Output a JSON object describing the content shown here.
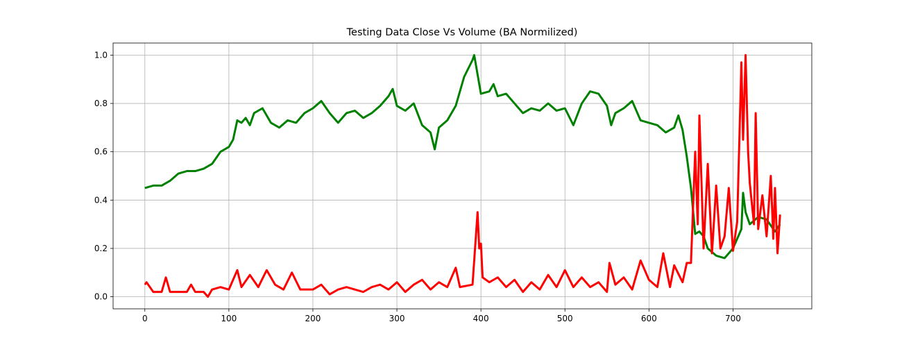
{
  "chart_data": {
    "type": "line",
    "title": "Testing Data Close Vs Volume (BA Normilized)",
    "grid": true,
    "xlim": [
      -37.8,
      793.8
    ],
    "ylim": [
      -0.05,
      1.05
    ],
    "xticks": [
      0,
      100,
      200,
      300,
      400,
      500,
      600,
      700
    ],
    "yticks": [
      {
        "value": 0,
        "label": "0.0"
      },
      0.2,
      0.4,
      0.6,
      0.8,
      {
        "value": 1,
        "label": "1.0"
      }
    ],
    "series": [
      {
        "color": "#008000",
        "x": [
          0,
          10,
          20,
          30,
          40,
          50,
          60,
          70,
          80,
          90,
          100,
          105,
          110,
          115,
          120,
          125,
          130,
          140,
          150,
          160,
          170,
          180,
          190,
          200,
          210,
          220,
          230,
          240,
          250,
          260,
          270,
          280,
          290,
          295,
          300,
          310,
          320,
          330,
          340,
          345,
          350,
          360,
          370,
          380,
          390,
          392,
          400,
          410,
          415,
          420,
          430,
          440,
          450,
          460,
          470,
          480,
          490,
          500,
          510,
          520,
          530,
          540,
          550,
          555,
          560,
          570,
          580,
          590,
          600,
          610,
          620,
          630,
          635,
          640,
          645,
          650,
          655,
          660,
          665,
          670,
          680,
          690,
          700,
          710,
          712,
          715,
          720,
          730,
          740,
          750,
          756
        ],
        "values": [
          0.45,
          0.46,
          0.46,
          0.48,
          0.51,
          0.52,
          0.52,
          0.53,
          0.55,
          0.6,
          0.62,
          0.65,
          0.73,
          0.72,
          0.74,
          0.71,
          0.76,
          0.78,
          0.72,
          0.7,
          0.73,
          0.72,
          0.76,
          0.78,
          0.81,
          0.76,
          0.72,
          0.76,
          0.77,
          0.74,
          0.76,
          0.79,
          0.83,
          0.86,
          0.79,
          0.77,
          0.8,
          0.71,
          0.68,
          0.61,
          0.7,
          0.73,
          0.79,
          0.91,
          0.98,
          1.0,
          0.84,
          0.85,
          0.88,
          0.83,
          0.84,
          0.8,
          0.76,
          0.78,
          0.77,
          0.8,
          0.77,
          0.78,
          0.71,
          0.8,
          0.85,
          0.84,
          0.79,
          0.71,
          0.76,
          0.78,
          0.81,
          0.73,
          0.72,
          0.71,
          0.68,
          0.7,
          0.75,
          0.69,
          0.58,
          0.45,
          0.26,
          0.27,
          0.25,
          0.2,
          0.17,
          0.16,
          0.2,
          0.28,
          0.43,
          0.35,
          0.3,
          0.33,
          0.32,
          0.27,
          0.3
        ]
      },
      {
        "color": "#ff0000",
        "x": [
          0,
          2,
          10,
          20,
          25,
          30,
          40,
          50,
          55,
          60,
          70,
          75,
          80,
          90,
          100,
          110,
          115,
          125,
          135,
          145,
          155,
          165,
          175,
          185,
          200,
          210,
          220,
          230,
          240,
          250,
          260,
          270,
          280,
          290,
          300,
          310,
          320,
          330,
          340,
          350,
          360,
          370,
          375,
          390,
          396,
          398,
          400,
          402,
          410,
          420,
          430,
          440,
          450,
          460,
          470,
          480,
          490,
          500,
          510,
          520,
          530,
          540,
          550,
          553,
          560,
          570,
          580,
          590,
          600,
          610,
          617,
          625,
          630,
          640,
          645,
          650,
          655,
          658,
          660,
          665,
          670,
          675,
          680,
          685,
          690,
          695,
          700,
          705,
          710,
          712,
          715,
          718,
          720,
          725,
          727,
          730,
          735,
          740,
          745,
          748,
          750,
          753,
          756
        ],
        "values": [
          0.05,
          0.06,
          0.02,
          0.02,
          0.08,
          0.02,
          0.02,
          0.02,
          0.05,
          0.02,
          0.02,
          0.0,
          0.03,
          0.04,
          0.03,
          0.11,
          0.04,
          0.09,
          0.04,
          0.11,
          0.05,
          0.03,
          0.1,
          0.03,
          0.03,
          0.05,
          0.01,
          0.03,
          0.04,
          0.03,
          0.02,
          0.04,
          0.05,
          0.03,
          0.06,
          0.02,
          0.05,
          0.07,
          0.03,
          0.06,
          0.04,
          0.12,
          0.04,
          0.05,
          0.35,
          0.2,
          0.22,
          0.08,
          0.06,
          0.08,
          0.04,
          0.07,
          0.02,
          0.06,
          0.03,
          0.09,
          0.04,
          0.11,
          0.04,
          0.08,
          0.04,
          0.06,
          0.02,
          0.14,
          0.05,
          0.08,
          0.03,
          0.15,
          0.07,
          0.04,
          0.18,
          0.04,
          0.13,
          0.06,
          0.14,
          0.14,
          0.6,
          0.3,
          0.75,
          0.2,
          0.55,
          0.18,
          0.46,
          0.2,
          0.25,
          0.45,
          0.19,
          0.31,
          0.97,
          0.65,
          1.0,
          0.6,
          0.47,
          0.3,
          0.76,
          0.28,
          0.42,
          0.25,
          0.5,
          0.24,
          0.45,
          0.18,
          0.34
        ]
      }
    ]
  }
}
